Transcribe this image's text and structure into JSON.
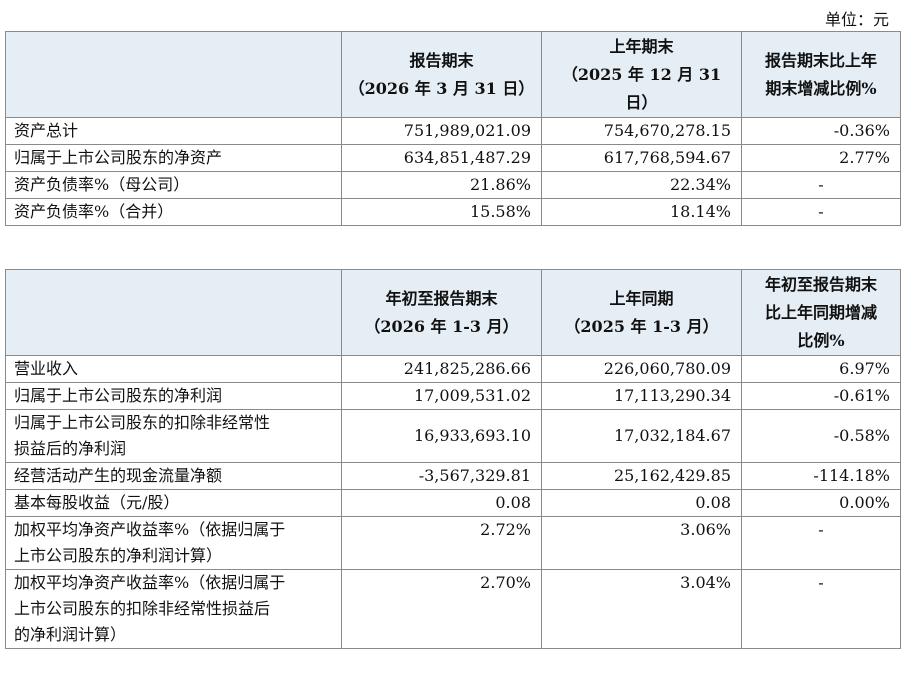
{
  "unit_label": "单位：元",
  "table1": {
    "headers": [
      "",
      "报告期末\n（2026 年 3 月 31 日）",
      "上年期末\n（2025 年 12 月 31\n日）",
      "报告期末比上年\n期末增减比例%"
    ],
    "rows": [
      [
        "资产总计",
        "751,989,021.09",
        "754,670,278.15",
        "-0.36%"
      ],
      [
        "归属于上市公司股东的净资产",
        "634,851,487.29",
        "617,768,594.67",
        "2.77%"
      ],
      [
        "资产负债率%（母公司）",
        "21.86%",
        "22.34%",
        "-"
      ],
      [
        "资产负债率%（合并）",
        "15.58%",
        "18.14%",
        "-"
      ]
    ]
  },
  "table2": {
    "headers": [
      "",
      "年初至报告期末\n（2026 年 1-3 月）",
      "上年同期\n（2025 年 1-3 月）",
      "年初至报告期末\n比上年同期增减\n比例%"
    ],
    "rows": [
      [
        "营业收入",
        "241,825,286.66",
        "226,060,780.09",
        "6.97%"
      ],
      [
        "归属于上市公司股东的净利润",
        "17,009,531.02",
        "17,113,290.34",
        "-0.61%"
      ],
      [
        "归属于上市公司股东的扣除非经常性\n损益后的净利润",
        "16,933,693.10",
        "17,032,184.67",
        "-0.58%"
      ],
      [
        "经营活动产生的现金流量净额",
        "-3,567,329.81",
        "25,162,429.85",
        "-114.18%"
      ],
      [
        "基本每股收益（元/股）",
        "0.08",
        "0.08",
        "0.00%"
      ],
      [
        "加权平均净资产收益率%（依据归属于\n上市公司股东的净利润计算）",
        "2.72%",
        "3.06%",
        "-"
      ],
      [
        "加权平均净资产收益率%（依据归属于\n上市公司股东的扣除非经常性损益后\n的净利润计算）",
        "2.70%",
        "3.04%",
        "-"
      ]
    ]
  }
}
